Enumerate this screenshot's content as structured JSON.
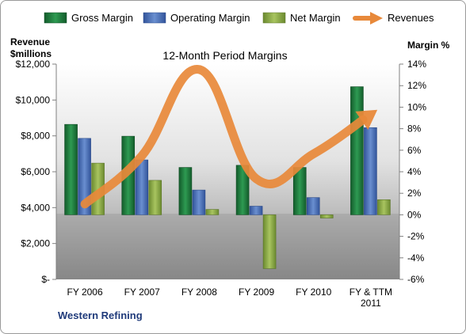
{
  "chart_data": {
    "type": "bar",
    "title": "12-Month Period Margins",
    "company": "Western Refining",
    "categories": [
      "FY 2006",
      "FY 2007",
      "FY 2008",
      "FY 2009",
      "FY 2010",
      "FY & TTM 2011"
    ],
    "left_axis": {
      "label_line1": "Revenue",
      "label_line2": "$millions",
      "range": [
        0,
        12000
      ],
      "ticks": [
        0,
        2000,
        4000,
        6000,
        8000,
        10000,
        12000
      ],
      "tick_labels": [
        "$-",
        "$2,000",
        "$4,000",
        "$6,000",
        "$8,000",
        "$10,000",
        "$12,000"
      ]
    },
    "right_axis": {
      "label": "Margin %",
      "range": [
        -6,
        14
      ],
      "ticks": [
        -6,
        -4,
        -2,
        0,
        2,
        4,
        6,
        8,
        10,
        12,
        14
      ],
      "tick_labels": [
        "-6%",
        "-4%",
        "-2%",
        "0%",
        "2%",
        "4%",
        "6%",
        "8%",
        "10%",
        "12%",
        "14%"
      ]
    },
    "series": [
      {
        "name": "Gross Margin",
        "type": "bar",
        "axis": "right",
        "color": "#1e7a3c",
        "values": [
          8.4,
          7.3,
          4.4,
          4.6,
          4.4,
          11.9
        ]
      },
      {
        "name": "Operating Margin",
        "type": "bar",
        "axis": "right",
        "color": "#4a6fb5",
        "values": [
          7.1,
          5.1,
          2.3,
          0.8,
          1.6,
          8.1
        ]
      },
      {
        "name": "Net Margin",
        "type": "bar",
        "axis": "right",
        "color": "#8aab45",
        "values": [
          4.8,
          3.2,
          0.5,
          -5.0,
          -0.3,
          1.4
        ]
      },
      {
        "name": "Revenues",
        "type": "line",
        "axis": "left",
        "color": "#e8893a",
        "values": [
          4200,
          6900,
          11700,
          5600,
          7000,
          9200
        ]
      }
    ],
    "legend_position": "top",
    "grid": false
  }
}
